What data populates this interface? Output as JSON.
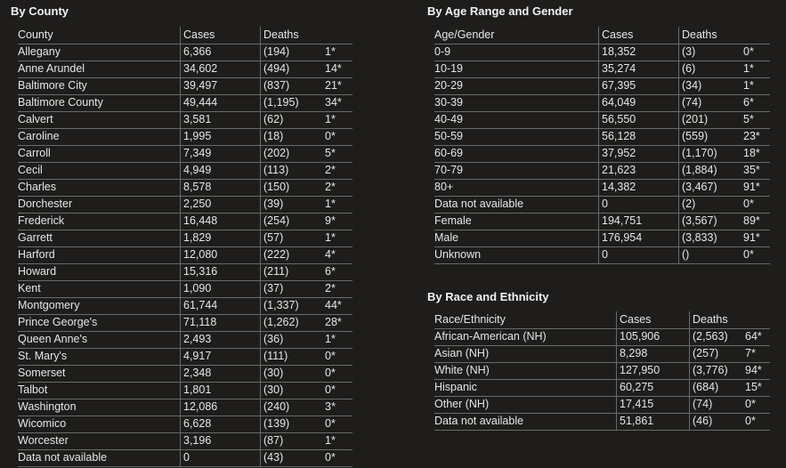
{
  "county": {
    "title": "By County",
    "headers": [
      "County",
      "Cases",
      "Deaths"
    ],
    "rows": [
      [
        "Allegany",
        "6,366",
        "(194)",
        "1*"
      ],
      [
        "Anne Arundel",
        "34,602",
        "(494)",
        "14*"
      ],
      [
        "Baltimore City",
        "39,497",
        "(837)",
        "21*"
      ],
      [
        "Baltimore County",
        "49,444",
        "(1,195)",
        "34*"
      ],
      [
        "Calvert",
        "3,581",
        "(62)",
        "1*"
      ],
      [
        "Caroline",
        "1,995",
        "(18)",
        "0*"
      ],
      [
        "Carroll",
        "7,349",
        "(202)",
        "5*"
      ],
      [
        "Cecil",
        "4,949",
        "(113)",
        "2*"
      ],
      [
        "Charles",
        "8,578",
        "(150)",
        "2*"
      ],
      [
        "Dorchester",
        "2,250",
        "(39)",
        "1*"
      ],
      [
        "Frederick",
        "16,448",
        "(254)",
        "9*"
      ],
      [
        "Garrett",
        "1,829",
        "(57)",
        "1*"
      ],
      [
        "Harford",
        "12,080",
        "(222)",
        "4*"
      ],
      [
        "Howard",
        "15,316",
        "(211)",
        "6*"
      ],
      [
        "Kent",
        "1,090",
        "(37)",
        "2*"
      ],
      [
        "Montgomery",
        "61,744",
        "(1,337)",
        "44*"
      ],
      [
        "Prince George's",
        "71,118",
        "(1,262)",
        "28*"
      ],
      [
        "Queen Anne's",
        "2,493",
        "(36)",
        "1*"
      ],
      [
        "St. Mary's",
        "4,917",
        "(111)",
        "0*"
      ],
      [
        "Somerset",
        "2,348",
        "(30)",
        "0*"
      ],
      [
        "Talbot",
        "1,801",
        "(30)",
        "0*"
      ],
      [
        "Washington",
        "12,086",
        "(240)",
        "3*"
      ],
      [
        "Wicomico",
        "6,628",
        "(139)",
        "0*"
      ],
      [
        "Worcester",
        "3,196",
        "(87)",
        "1*"
      ],
      [
        "Data not available",
        "0",
        "(43)",
        "0*"
      ]
    ]
  },
  "age_gender": {
    "title": "By Age Range and Gender",
    "headers": [
      "Age/Gender",
      "Cases",
      "Deaths"
    ],
    "rows": [
      [
        "0-9",
        "18,352",
        "(3)",
        "0*"
      ],
      [
        "10-19",
        "35,274",
        "(6)",
        "1*"
      ],
      [
        "20-29",
        "67,395",
        "(34)",
        "1*"
      ],
      [
        "30-39",
        "64,049",
        "(74)",
        "6*"
      ],
      [
        "40-49",
        "56,550",
        "(201)",
        "5*"
      ],
      [
        "50-59",
        "56,128",
        "(559)",
        "23*"
      ],
      [
        "60-69",
        "37,952",
        "(1,170)",
        "18*"
      ],
      [
        "70-79",
        "21,623",
        "(1,884)",
        "35*"
      ],
      [
        "80+",
        "14,382",
        "(3,467)",
        "91*"
      ],
      [
        "Data not available",
        "0",
        "(2)",
        "0*"
      ],
      [
        "Female",
        "194,751",
        "(3,567)",
        "89*"
      ],
      [
        "Male",
        "176,954",
        "(3,833)",
        "91*"
      ],
      [
        "Unknown",
        "0",
        "()",
        "0*"
      ]
    ]
  },
  "race_ethnicity": {
    "title": "By Race and Ethnicity",
    "headers": [
      "Race/Ethnicity",
      "Cases",
      "Deaths"
    ],
    "rows": [
      [
        "African-American (NH)",
        "105,906",
        "(2,563)",
        "64*"
      ],
      [
        "Asian (NH)",
        "8,298",
        "(257)",
        "7*"
      ],
      [
        "White (NH)",
        "127,950",
        "(3,776)",
        "94*"
      ],
      [
        "Hispanic",
        "60,275",
        "(684)",
        "15*"
      ],
      [
        "Other (NH)",
        "17,415",
        "(74)",
        "0*"
      ],
      [
        "Data not available",
        "51,861",
        "(46)",
        "0*"
      ]
    ]
  }
}
